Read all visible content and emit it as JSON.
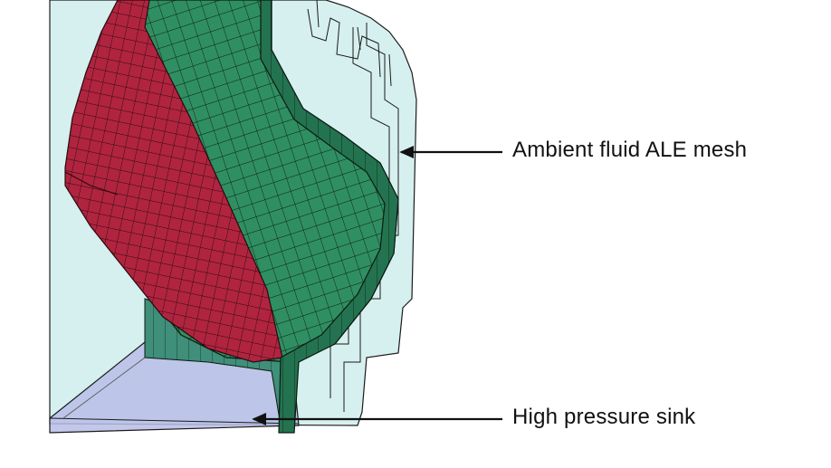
{
  "diagram": {
    "labels": {
      "ambient_fluid": "Ambient fluid ALE mesh",
      "high_pressure_sink": "High pressure sink"
    },
    "colors": {
      "background": "#ffffff",
      "ale_mesh_fill": "#d6f0ef",
      "ale_mesh_edge": "#1a1a1a",
      "membrane_green": "#2f8f62",
      "membrane_green_dark": "#237350",
      "membrane_red": "#b0243f",
      "sink_fill": "#b8bde6",
      "mesh_line": "#0d1a10",
      "arrow": "#111111"
    }
  }
}
